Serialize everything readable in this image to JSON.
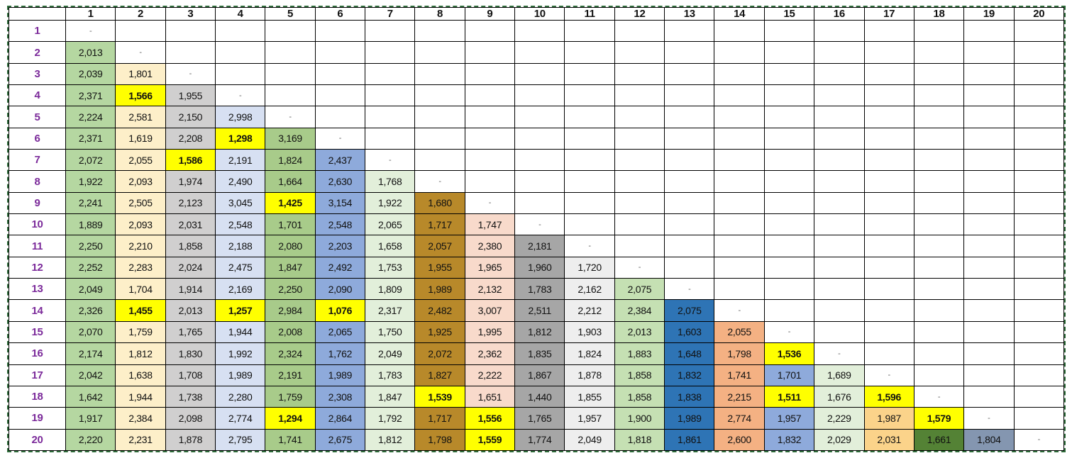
{
  "matrix": {
    "column_headers": [
      "1",
      "2",
      "3",
      "4",
      "5",
      "6",
      "7",
      "8",
      "9",
      "10",
      "11",
      "12",
      "13",
      "14",
      "15",
      "16",
      "17",
      "18",
      "19",
      "20"
    ],
    "row_headers": [
      "1",
      "2",
      "3",
      "4",
      "5",
      "6",
      "7",
      "8",
      "9",
      "10",
      "11",
      "12",
      "13",
      "14",
      "15",
      "16",
      "17",
      "18",
      "19",
      "20"
    ],
    "diagonal_symbol": "-",
    "rows": [
      [],
      [
        "2,013"
      ],
      [
        "2,039",
        "1,801"
      ],
      [
        "2,371",
        "1,566",
        "1,955"
      ],
      [
        "2,224",
        "2,581",
        "2,150",
        "2,998"
      ],
      [
        "2,371",
        "1,619",
        "2,208",
        "1,298",
        "3,169"
      ],
      [
        "2,072",
        "2,055",
        "1,586",
        "2,191",
        "1,824",
        "2,437"
      ],
      [
        "1,922",
        "2,093",
        "1,974",
        "2,490",
        "1,664",
        "2,630",
        "1,768"
      ],
      [
        "2,241",
        "2,505",
        "2,123",
        "3,045",
        "1,425",
        "3,154",
        "1,922",
        "1,680"
      ],
      [
        "1,889",
        "2,093",
        "2,031",
        "2,548",
        "1,701",
        "2,548",
        "2,065",
        "1,717",
        "1,747"
      ],
      [
        "2,250",
        "2,210",
        "1,858",
        "2,188",
        "2,080",
        "2,203",
        "1,658",
        "2,057",
        "2,380",
        "2,181"
      ],
      [
        "2,252",
        "2,283",
        "2,024",
        "2,475",
        "1,847",
        "2,492",
        "1,753",
        "1,955",
        "1,965",
        "1,960",
        "1,720"
      ],
      [
        "2,049",
        "1,704",
        "1,914",
        "2,169",
        "2,250",
        "2,090",
        "1,809",
        "1,989",
        "2,132",
        "1,783",
        "2,162",
        "2,075"
      ],
      [
        "2,326",
        "1,455",
        "2,013",
        "1,257",
        "2,984",
        "1,076",
        "2,317",
        "2,482",
        "3,007",
        "2,511",
        "2,212",
        "2,384",
        "2,075"
      ],
      [
        "2,070",
        "1,759",
        "1,765",
        "1,944",
        "2,008",
        "2,065",
        "1,750",
        "1,925",
        "1,995",
        "1,812",
        "1,903",
        "2,013",
        "1,603",
        "2,055"
      ],
      [
        "2,174",
        "1,812",
        "1,830",
        "1,992",
        "2,324",
        "1,762",
        "2,049",
        "2,072",
        "2,362",
        "1,835",
        "1,824",
        "1,883",
        "1,648",
        "1,798",
        "1,536"
      ],
      [
        "2,042",
        "1,638",
        "1,708",
        "1,989",
        "2,191",
        "1,989",
        "1,783",
        "1,827",
        "2,222",
        "1,867",
        "1,878",
        "1,858",
        "1,832",
        "1,741",
        "1,701",
        "1,689"
      ],
      [
        "1,642",
        "1,944",
        "1,738",
        "2,280",
        "1,759",
        "2,308",
        "1,847",
        "1,539",
        "1,651",
        "1,440",
        "1,855",
        "1,858",
        "1,838",
        "2,215",
        "1,511",
        "1,676",
        "1,596"
      ],
      [
        "1,917",
        "2,384",
        "2,098",
        "2,774",
        "1,294",
        "2,864",
        "1,792",
        "1,717",
        "1,556",
        "1,765",
        "1,957",
        "1,900",
        "1,989",
        "2,774",
        "1,957",
        "2,229",
        "1,987",
        "1,579"
      ],
      [
        "2,220",
        "2,231",
        "1,878",
        "2,795",
        "1,741",
        "2,675",
        "1,812",
        "1,798",
        "1,559",
        "1,774",
        "2,049",
        "1,818",
        "1,861",
        "2,600",
        "1,832",
        "2,029",
        "2,031",
        "1,661",
        "1,804"
      ]
    ],
    "highlighted_cells": [
      [
        4,
        2
      ],
      [
        6,
        4
      ],
      [
        7,
        3
      ],
      [
        9,
        5
      ],
      [
        14,
        2
      ],
      [
        14,
        4
      ],
      [
        14,
        6
      ],
      [
        16,
        15
      ],
      [
        18,
        8
      ],
      [
        18,
        15
      ],
      [
        18,
        17
      ],
      [
        19,
        5
      ],
      [
        19,
        9
      ],
      [
        19,
        18
      ],
      [
        20,
        9
      ]
    ],
    "column_colors": [
      "#b5d7a1",
      "#fdefc9",
      "#d0cfcf",
      "#d7e0f2",
      "#a8cb8a",
      "#8eaadb",
      "#e2efda",
      "#b8892a",
      "#f8dacb",
      "#a6a6a6",
      "#eeeeee",
      "#c5e0b3",
      "#2e74b5",
      "#f4b183",
      "#8eaadb",
      "#e2efda",
      "#fbd38a",
      "#548235",
      "#8496b0"
    ],
    "highlight_color": "#ffff00",
    "frame_color": "#2e6b3a",
    "row_header_color": "#7b2a9a"
  }
}
